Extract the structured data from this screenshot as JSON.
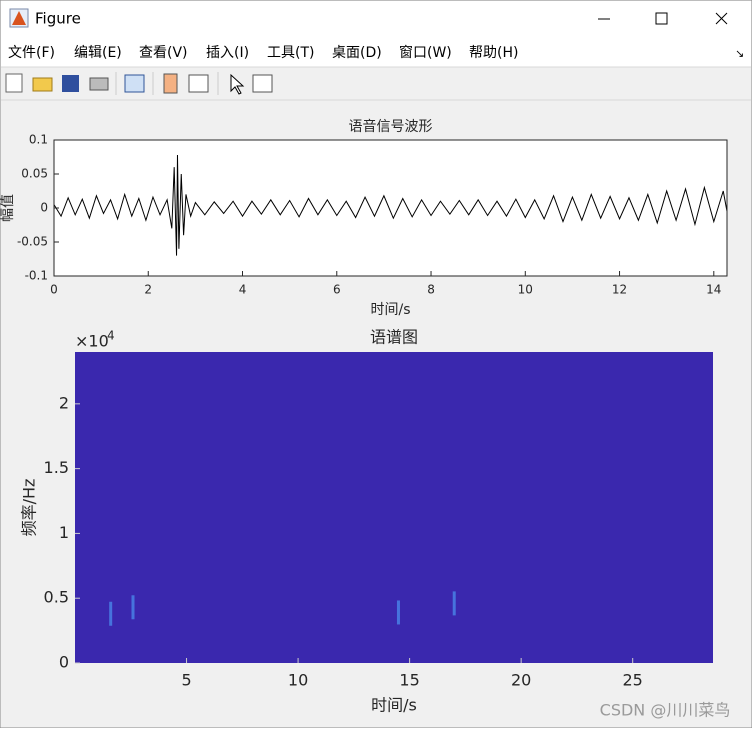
{
  "window": {
    "title": "Figure",
    "menu": [
      "文件(F)",
      "编辑(E)",
      "查看(V)",
      "插入(I)",
      "工具(T)",
      "桌面(D)",
      "窗口(W)",
      "帮助(H)"
    ],
    "watermark": "CSDN @川川菜鸟"
  },
  "chart_data": [
    {
      "type": "line",
      "title": "语音信号波形",
      "xlabel": "时间/s",
      "ylabel": "幅值",
      "xlim": [
        0,
        14.28
      ],
      "xticks": [
        0,
        2,
        4,
        6,
        8,
        10,
        12,
        14
      ],
      "ylim": [
        -0.1,
        0.1
      ],
      "yticks": [
        -0.1,
        -0.05,
        0,
        0.05,
        0.1
      ],
      "x": [
        0,
        0.15,
        0.3,
        0.45,
        0.6,
        0.75,
        0.9,
        1.05,
        1.2,
        1.35,
        1.5,
        1.65,
        1.8,
        1.95,
        2.1,
        2.25,
        2.4,
        2.5,
        2.55,
        2.6,
        2.62,
        2.65,
        2.7,
        2.75,
        2.8,
        2.9,
        3.0,
        3.2,
        3.4,
        3.6,
        3.8,
        4.0,
        4.2,
        4.4,
        4.6,
        4.8,
        5.0,
        5.2,
        5.4,
        5.6,
        5.8,
        6.0,
        6.2,
        6.4,
        6.6,
        6.8,
        7.0,
        7.2,
        7.4,
        7.6,
        7.8,
        8.0,
        8.2,
        8.4,
        8.6,
        8.8,
        9.0,
        9.2,
        9.4,
        9.6,
        9.8,
        10.0,
        10.2,
        10.4,
        10.6,
        10.8,
        11.0,
        11.2,
        11.4,
        11.6,
        11.8,
        12.0,
        12.2,
        12.4,
        12.6,
        12.8,
        13.0,
        13.2,
        13.4,
        13.6,
        13.8,
        14.0,
        14.2,
        14.28
      ],
      "series": [
        {
          "color": "#000000",
          "values": [
            0.005,
            -0.012,
            0.015,
            -0.01,
            0.013,
            -0.015,
            0.018,
            -0.008,
            0.012,
            -0.016,
            0.02,
            -0.012,
            0.014,
            -0.018,
            0.016,
            -0.01,
            0.012,
            -0.03,
            0.06,
            -0.07,
            0.078,
            -0.06,
            0.05,
            -0.04,
            0.02,
            -0.012,
            0.008,
            -0.01,
            0.009,
            -0.008,
            0.01,
            -0.012,
            0.01,
            -0.009,
            0.012,
            -0.01,
            0.011,
            -0.013,
            0.014,
            -0.01,
            0.012,
            -0.011,
            0.01,
            -0.014,
            0.016,
            -0.012,
            0.018,
            -0.015,
            0.014,
            -0.013,
            0.012,
            -0.011,
            0.01,
            -0.009,
            0.011,
            -0.01,
            0.012,
            -0.011,
            0.01,
            -0.012,
            0.013,
            -0.014,
            0.012,
            -0.016,
            0.018,
            -0.02,
            0.016,
            -0.018,
            0.02,
            -0.015,
            0.017,
            -0.016,
            0.015,
            -0.018,
            0.02,
            -0.022,
            0.025,
            -0.018,
            0.028,
            -0.024,
            0.03,
            -0.02,
            0.025,
            -0.005
          ]
        }
      ]
    },
    {
      "type": "spectrogram",
      "title": "语谱图",
      "xlabel": "时间/s",
      "ylabel": "频率/Hz",
      "xlim": [
        0,
        28.6
      ],
      "xticks": [
        5,
        10,
        15,
        20,
        25
      ],
      "ylim": [
        0,
        24000
      ],
      "yticks": [
        0,
        {
          "value": 5000,
          "label": "0.5"
        },
        {
          "value": 10000,
          "label": "1"
        },
        {
          "value": 15000,
          "label": "1.5"
        },
        {
          "value": 20000,
          "label": "2"
        }
      ],
      "y_multiplier": {
        "base": "×10",
        "exponent": "4"
      },
      "background_color": "#3a28ae",
      "bright_spots": {
        "color": "#4a86e8",
        "x": [
          1.6,
          2.6,
          14.5,
          17.0
        ],
        "y": [
          3800,
          4300,
          3900,
          4600
        ]
      }
    }
  ]
}
